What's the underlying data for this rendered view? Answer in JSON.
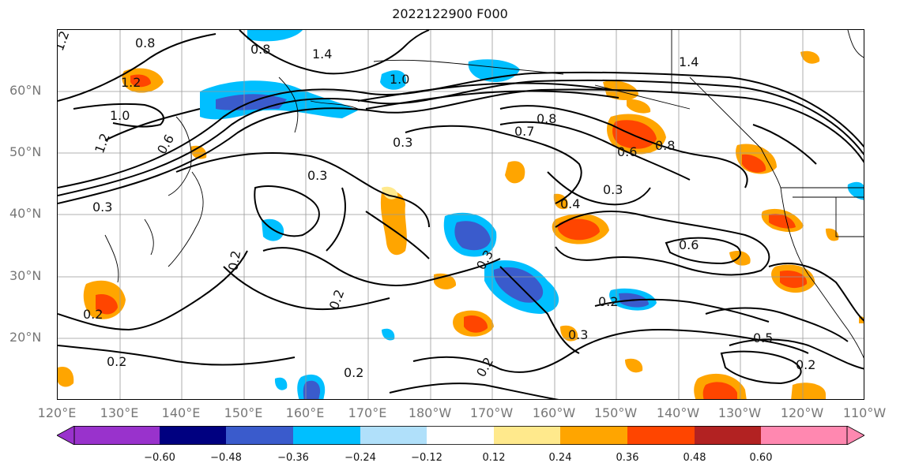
{
  "title": "2022122900 F000",
  "lat_labels": [
    "60°N",
    "50°N",
    "40°N",
    "30°N",
    "20°N"
  ],
  "lon_labels": [
    "120°E",
    "130°E",
    "140°E",
    "150°E",
    "160°E",
    "170°E",
    "180°W",
    "170°W",
    "160°W",
    "150°W",
    "140°W",
    "130°W",
    "120°W",
    "110°W"
  ],
  "contour_labels": [
    "1.2",
    "0.8",
    "0.8",
    "1.4",
    "1.2",
    "1.0",
    "1.0",
    "0.8",
    "1.2",
    "0.6",
    "0.3",
    "0.7",
    "0.6",
    "0.8",
    "1.4",
    "0.3",
    "0.3",
    "0.4",
    "0.3",
    "0.6",
    "0.2",
    "0.2",
    "0.2",
    "0.2",
    "0.2",
    "0.2",
    "0.2",
    "0.5",
    "0.2",
    "0.3",
    "0.3"
  ],
  "colorbar": {
    "ticks": [
      "−0.60",
      "−0.48",
      "−0.36",
      "−0.24",
      "−0.12",
      "0.12",
      "0.24",
      "0.36",
      "0.48",
      "0.60"
    ],
    "colors": [
      "#9932cc",
      "#000080",
      "#3a5bcc",
      "#00bfff",
      "#b0e0fa",
      "#ffffff",
      "#ffe98c",
      "#ffa500",
      "#ff4500",
      "#b22222",
      "#ff88b0"
    ]
  }
}
